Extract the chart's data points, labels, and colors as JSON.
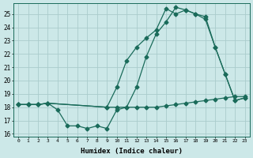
{
  "xlabel": "Humidex (Indice chaleur)",
  "bg_color": "#cce8e8",
  "grid_color": "#aacccc",
  "line_color": "#1a6b5a",
  "xlim": [
    -0.5,
    23.5
  ],
  "ylim": [
    15.8,
    25.8
  ],
  "yticks": [
    16,
    17,
    18,
    19,
    20,
    21,
    22,
    23,
    24,
    25
  ],
  "xticks": [
    0,
    1,
    2,
    3,
    4,
    5,
    6,
    7,
    8,
    9,
    10,
    11,
    12,
    13,
    14,
    15,
    16,
    17,
    18,
    19,
    20,
    21,
    22,
    23
  ],
  "line1_x": [
    0,
    1,
    2,
    3,
    4,
    5,
    6,
    7,
    8,
    9,
    10,
    11,
    12,
    13,
    14,
    15,
    16,
    17,
    18,
    19,
    20,
    21,
    22,
    23
  ],
  "line1_y": [
    18.2,
    18.2,
    18.2,
    18.3,
    17.8,
    16.6,
    16.6,
    16.4,
    16.6,
    16.4,
    17.8,
    18.0,
    19.5,
    21.8,
    23.5,
    24.4,
    25.5,
    25.3,
    25.0,
    24.8,
    22.5,
    20.5,
    18.5,
    18.7
  ],
  "line2_x": [
    0,
    1,
    2,
    3,
    9,
    10,
    11,
    12,
    13,
    14,
    15,
    16,
    17,
    18,
    19,
    20,
    21,
    22,
    23
  ],
  "line2_y": [
    18.2,
    18.2,
    18.2,
    18.3,
    18.0,
    18.0,
    18.0,
    18.0,
    18.0,
    18.0,
    18.1,
    18.2,
    18.3,
    18.4,
    18.5,
    18.6,
    18.7,
    18.8,
    18.8
  ],
  "line3_x": [
    0,
    1,
    2,
    3,
    9,
    10,
    11,
    12,
    13,
    14,
    15,
    16,
    17,
    18,
    19,
    20,
    21,
    22,
    23
  ],
  "line3_y": [
    18.2,
    18.2,
    18.2,
    18.3,
    18.0,
    19.5,
    21.5,
    22.5,
    23.2,
    23.8,
    25.4,
    25.0,
    25.3,
    25.0,
    24.6,
    22.5,
    20.5,
    18.5,
    18.7
  ]
}
